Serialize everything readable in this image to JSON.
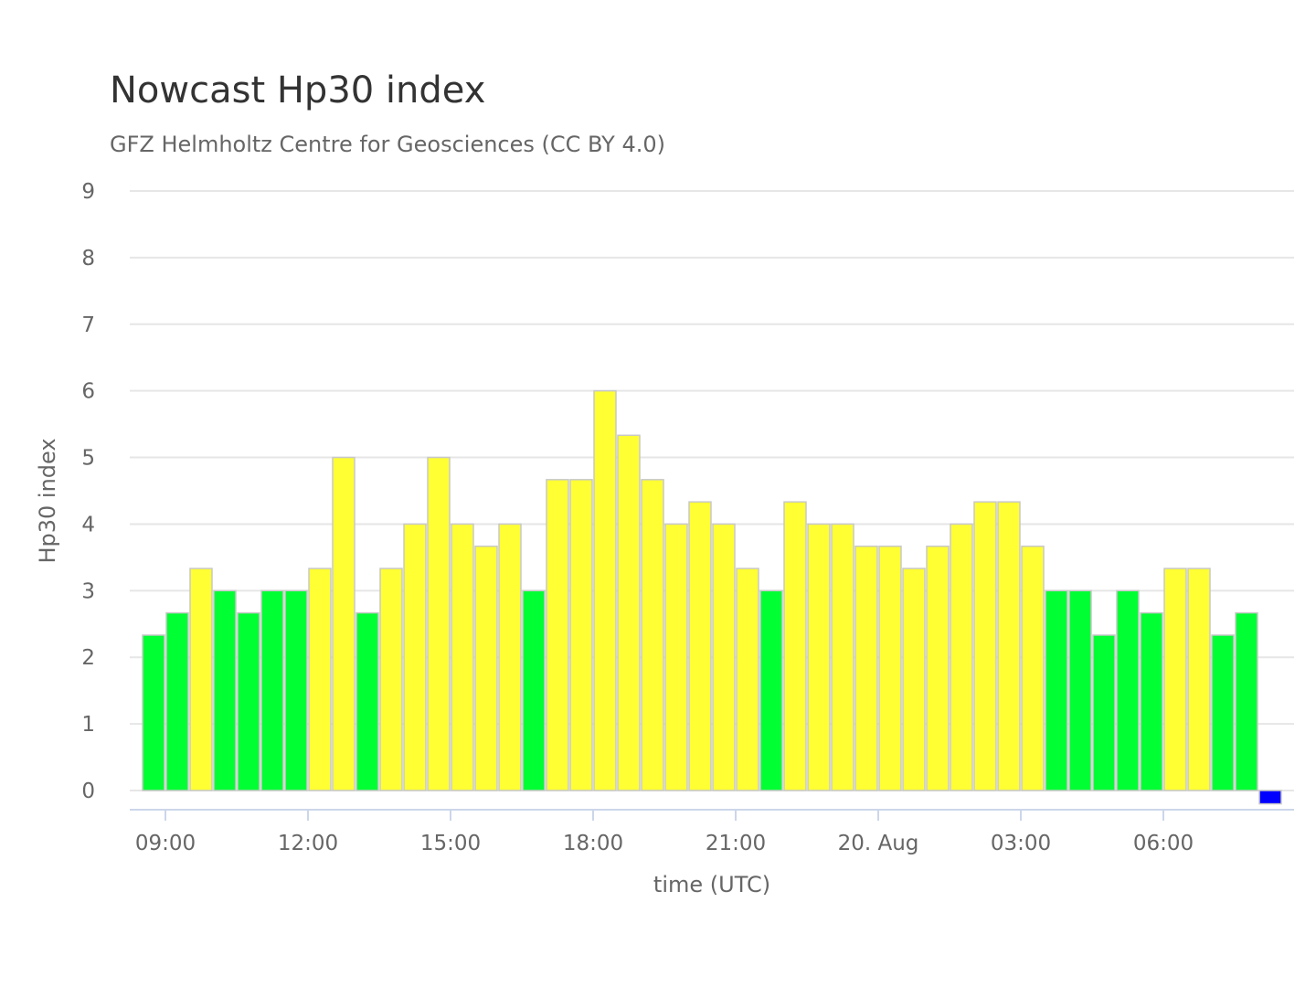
{
  "chart_data": {
    "type": "bar",
    "title": "Nowcast Hp30 index",
    "subtitle": "GFZ Helmholtz Centre for Geosciences (CC BY 4.0)",
    "xlabel": "time (UTC)",
    "ylabel": "Hp30 index",
    "ylim": [
      0,
      9
    ],
    "yticks": [
      0,
      1,
      2,
      3,
      4,
      5,
      6,
      7,
      8,
      9
    ],
    "x_range": [
      "2025-08-19T08:30Z",
      "2025-08-20T08:30Z"
    ],
    "xticks": [
      {
        "t": "2025-08-19T09:00Z",
        "label": "09:00"
      },
      {
        "t": "2025-08-19T12:00Z",
        "label": "12:00"
      },
      {
        "t": "2025-08-19T15:00Z",
        "label": "15:00"
      },
      {
        "t": "2025-08-19T18:00Z",
        "label": "18:00"
      },
      {
        "t": "2025-08-19T21:00Z",
        "label": "21:00"
      },
      {
        "t": "2025-08-20T00:00Z",
        "label": "20. Aug"
      },
      {
        "t": "2025-08-20T03:00Z",
        "label": "03:00"
      },
      {
        "t": "2025-08-20T06:00Z",
        "label": "06:00"
      }
    ],
    "grid": true,
    "legend": "none",
    "colors": {
      "green": "#00ff33",
      "yellow": "#ffff33",
      "blue": "#0000ff",
      "gridline": "#e6e6e6",
      "axis_line": "#ccd6eb",
      "bar_border": "#c8c8c8"
    },
    "bars": [
      {
        "t": "2025-08-19T08:30Z",
        "value": 2.333,
        "color": "green"
      },
      {
        "t": "2025-08-19T09:00Z",
        "value": 2.667,
        "color": "green"
      },
      {
        "t": "2025-08-19T09:30Z",
        "value": 3.333,
        "color": "yellow"
      },
      {
        "t": "2025-08-19T10:00Z",
        "value": 3.0,
        "color": "green"
      },
      {
        "t": "2025-08-19T10:30Z",
        "value": 2.667,
        "color": "green"
      },
      {
        "t": "2025-08-19T11:00Z",
        "value": 3.0,
        "color": "green"
      },
      {
        "t": "2025-08-19T11:30Z",
        "value": 3.0,
        "color": "green"
      },
      {
        "t": "2025-08-19T12:00Z",
        "value": 3.333,
        "color": "yellow"
      },
      {
        "t": "2025-08-19T12:30Z",
        "value": 5.0,
        "color": "yellow"
      },
      {
        "t": "2025-08-19T13:00Z",
        "value": 2.667,
        "color": "green"
      },
      {
        "t": "2025-08-19T13:30Z",
        "value": 3.333,
        "color": "yellow"
      },
      {
        "t": "2025-08-19T14:00Z",
        "value": 4.0,
        "color": "yellow"
      },
      {
        "t": "2025-08-19T14:30Z",
        "value": 5.0,
        "color": "yellow"
      },
      {
        "t": "2025-08-19T15:00Z",
        "value": 4.0,
        "color": "yellow"
      },
      {
        "t": "2025-08-19T15:30Z",
        "value": 3.667,
        "color": "yellow"
      },
      {
        "t": "2025-08-19T16:00Z",
        "value": 4.0,
        "color": "yellow"
      },
      {
        "t": "2025-08-19T16:30Z",
        "value": 3.0,
        "color": "green"
      },
      {
        "t": "2025-08-19T17:00Z",
        "value": 4.667,
        "color": "yellow"
      },
      {
        "t": "2025-08-19T17:30Z",
        "value": 4.667,
        "color": "yellow"
      },
      {
        "t": "2025-08-19T18:00Z",
        "value": 6.0,
        "color": "yellow"
      },
      {
        "t": "2025-08-19T18:30Z",
        "value": 5.333,
        "color": "yellow"
      },
      {
        "t": "2025-08-19T19:00Z",
        "value": 4.667,
        "color": "yellow"
      },
      {
        "t": "2025-08-19T19:30Z",
        "value": 4.0,
        "color": "yellow"
      },
      {
        "t": "2025-08-19T20:00Z",
        "value": 4.333,
        "color": "yellow"
      },
      {
        "t": "2025-08-19T20:30Z",
        "value": 4.0,
        "color": "yellow"
      },
      {
        "t": "2025-08-19T21:00Z",
        "value": 3.333,
        "color": "yellow"
      },
      {
        "t": "2025-08-19T21:30Z",
        "value": 3.0,
        "color": "green"
      },
      {
        "t": "2025-08-19T22:00Z",
        "value": 4.333,
        "color": "yellow"
      },
      {
        "t": "2025-08-19T22:30Z",
        "value": 4.0,
        "color": "yellow"
      },
      {
        "t": "2025-08-19T23:00Z",
        "value": 4.0,
        "color": "yellow"
      },
      {
        "t": "2025-08-19T23:30Z",
        "value": 3.667,
        "color": "yellow"
      },
      {
        "t": "2025-08-20T00:00Z",
        "value": 3.667,
        "color": "yellow"
      },
      {
        "t": "2025-08-20T00:30Z",
        "value": 3.333,
        "color": "yellow"
      },
      {
        "t": "2025-08-20T01:00Z",
        "value": 3.667,
        "color": "yellow"
      },
      {
        "t": "2025-08-20T01:30Z",
        "value": 4.0,
        "color": "yellow"
      },
      {
        "t": "2025-08-20T02:00Z",
        "value": 4.333,
        "color": "yellow"
      },
      {
        "t": "2025-08-20T02:30Z",
        "value": 4.333,
        "color": "yellow"
      },
      {
        "t": "2025-08-20T03:00Z",
        "value": 3.667,
        "color": "yellow"
      },
      {
        "t": "2025-08-20T03:30Z",
        "value": 3.0,
        "color": "green"
      },
      {
        "t": "2025-08-20T04:00Z",
        "value": 3.0,
        "color": "green"
      },
      {
        "t": "2025-08-20T04:30Z",
        "value": 2.333,
        "color": "green"
      },
      {
        "t": "2025-08-20T05:00Z",
        "value": 3.0,
        "color": "green"
      },
      {
        "t": "2025-08-20T05:30Z",
        "value": 2.667,
        "color": "green"
      },
      {
        "t": "2025-08-20T06:00Z",
        "value": 3.333,
        "color": "yellow"
      },
      {
        "t": "2025-08-20T06:30Z",
        "value": 3.333,
        "color": "yellow"
      },
      {
        "t": "2025-08-20T07:00Z",
        "value": 2.333,
        "color": "green"
      },
      {
        "t": "2025-08-20T07:30Z",
        "value": 2.667,
        "color": "green"
      },
      {
        "t": "2025-08-20T08:00Z",
        "value": -0.2,
        "color": "blue"
      }
    ]
  }
}
